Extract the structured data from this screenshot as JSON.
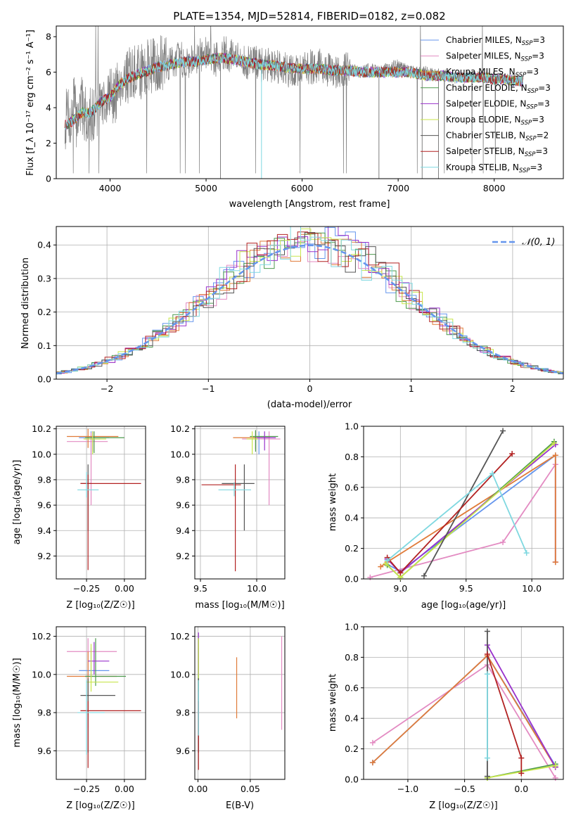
{
  "figure": {
    "title": "PLATE=1354, MJD=52814, FIBERID=0182, z=0.082"
  },
  "chart_data": [
    {
      "id": "spectrum",
      "type": "line",
      "xlabel": "wavelength [Angstrom, rest frame]",
      "ylabel": "Flux [f_λ 10⁻¹⁷ erg cm⁻² s⁻¹ A⁻¹]",
      "xlim": [
        3440,
        8720
      ],
      "ylim": [
        0,
        8.6
      ],
      "xticks": [
        4000,
        5000,
        6000,
        7000,
        8000
      ],
      "yticks": [
        0,
        2,
        4,
        6,
        8
      ],
      "grid": false,
      "legend_position": "top-right",
      "data_line": {
        "color": "#808080",
        "x": [
          3530,
          3560,
          3590,
          3620,
          3650,
          3700,
          3750,
          3800,
          3850,
          3900,
          3950,
          4000,
          4050,
          4100,
          4200,
          4300,
          4400,
          4500,
          4600,
          4700,
          4800,
          4900,
          5000,
          5100,
          5200,
          5300,
          5400,
          5500,
          5600,
          5700,
          5800,
          5900,
          6000,
          6100,
          6200,
          6300,
          6400,
          6500,
          6600,
          6700,
          6800,
          6900,
          7000,
          7100,
          7200,
          7300,
          7400,
          7500,
          7600,
          7700,
          7800,
          7900,
          8000,
          8100,
          8200,
          8300
        ],
        "y": [
          2.8,
          4.3,
          2.6,
          4.8,
          3.2,
          4.2,
          3.5,
          3.7,
          3.6,
          4.3,
          4.4,
          4.8,
          4.5,
          5.6,
          5.8,
          6.0,
          6.3,
          6.5,
          6.4,
          6.8,
          6.6,
          6.9,
          7.0,
          6.7,
          7.1,
          6.8,
          6.5,
          6.6,
          6.4,
          6.4,
          6.3,
          6.0,
          6.2,
          6.3,
          6.4,
          6.0,
          6.1,
          6.2,
          6.0,
          6.2,
          6.0,
          6.3,
          6.4,
          6.1,
          6.0,
          6.0,
          5.8,
          5.8,
          5.7,
          5.7,
          5.8,
          5.7,
          5.7,
          5.6,
          5.6,
          5.5
        ]
      },
      "model_x": [
        3530,
        3600,
        3700,
        3800,
        3900,
        4000,
        4100,
        4200,
        4300,
        4400,
        4500,
        4600,
        4700,
        4800,
        4900,
        5000,
        5100,
        5200,
        5300,
        5400,
        5500,
        5600,
        5700,
        5800,
        5900,
        6000,
        6100,
        6200,
        6300,
        6400,
        6500,
        6600,
        6700,
        6800,
        6900,
        7000,
        7100,
        7200,
        7300,
        7400,
        7500,
        7600,
        7700,
        7800,
        7900,
        8000,
        8100,
        8200,
        8300
      ],
      "model_y": [
        3.0,
        3.2,
        3.7,
        3.7,
        4.3,
        4.6,
        5.3,
        5.7,
        5.9,
        6.1,
        6.3,
        6.4,
        6.5,
        6.6,
        6.6,
        6.7,
        6.8,
        6.8,
        6.7,
        6.6,
        6.5,
        6.4,
        6.4,
        6.3,
        6.2,
        6.2,
        6.2,
        6.2,
        6.1,
        6.1,
        6.1,
        6.0,
        6.0,
        6.0,
        6.0,
        6.0,
        6.0,
        5.9,
        5.8,
        5.8,
        5.8,
        5.7,
        5.7,
        5.7,
        5.7,
        5.6,
        5.6,
        5.5,
        5.5
      ],
      "series": [
        {
          "name": "Chabrier MILES, N_SSP=3",
          "color": "#6495ed"
        },
        {
          "name": "Salpeter MILES, N_SSP=3",
          "color": "#e38bc2"
        },
        {
          "name": "Kroupa MILES, N_SSP=3",
          "color": "#e07b39"
        },
        {
          "name": "Chabrier ELODIE, N_SSP=3",
          "color": "#4d9a4d"
        },
        {
          "name": "Salpeter ELODIE, N_SSP=3",
          "color": "#9932cc"
        },
        {
          "name": "Kroupa ELODIE, N_SSP=3",
          "color": "#c8e64b"
        },
        {
          "name": "Chabrier STELIB, N_SSP=2",
          "color": "#555555"
        },
        {
          "name": "Salpeter STELIB, N_SSP=3",
          "color": "#b22222"
        },
        {
          "name": "Kroupa STELIB, N_SSP=3",
          "color": "#7fd8e0"
        }
      ]
    },
    {
      "id": "residuals",
      "type": "histogram",
      "xlabel": "(data-model)/error",
      "ylabel": "Normed distribution",
      "xlim": [
        -2.5,
        2.5
      ],
      "ylim": [
        0,
        0.455
      ],
      "xticks": [
        -2,
        -1,
        0,
        1,
        2
      ],
      "yticks": [
        0.0,
        0.1,
        0.2,
        0.3,
        0.4
      ],
      "grid": true,
      "legend_position": "top-right",
      "legend": "𝒩(0, 1)",
      "gaussian_color": "#6495ed",
      "bin_width": 0.1
    },
    {
      "id": "age-vs-Z",
      "type": "errorbar",
      "xlabel": "Z [log₁₀(Z/Z☉)]",
      "ylabel": "age  [log₁₀(age/yr)]",
      "xlim": [
        -0.45,
        0.14
      ],
      "ylim": [
        9.02,
        10.22
      ],
      "xticks": [
        -0.25,
        0.0
      ],
      "yticks": [
        9.2,
        9.4,
        9.6,
        9.8,
        10.0,
        10.2
      ],
      "grid": true,
      "points": [
        {
          "x": -0.22,
          "y": 10.13,
          "xerr": [
            0.08,
            0.12
          ],
          "yerr": [
            0.13,
            0.05
          ],
          "color": "#6495ed"
        },
        {
          "x": -0.22,
          "y": 10.1,
          "xerr": [
            0.16,
            0.11
          ],
          "yerr": [
            0.5,
            0.07
          ],
          "color": "#e38bc2"
        },
        {
          "x": -0.24,
          "y": 10.14,
          "xerr": [
            0.14,
            0.2
          ],
          "yerr": [
            0.09,
            0.06
          ],
          "color": "#e07b39"
        },
        {
          "x": -0.2,
          "y": 10.13,
          "xerr": [
            0.06,
            0.2
          ],
          "yerr": [
            0.12,
            0.05
          ],
          "color": "#4d9a4d"
        },
        {
          "x": -0.21,
          "y": 10.12,
          "xerr": [
            0.05,
            0.05
          ],
          "yerr": [
            0.1,
            0.06
          ],
          "color": "#9932cc"
        },
        {
          "x": -0.21,
          "y": 10.12,
          "xerr": [
            0.06,
            0.09
          ],
          "yerr": [
            0.12,
            0.06
          ],
          "color": "#c8e64b"
        },
        {
          "x": -0.24,
          "y": 9.77,
          "xerr": [
            0.05,
            0.02
          ],
          "yerr": [
            0.37,
            0.15
          ],
          "color": "#555555"
        },
        {
          "x": -0.24,
          "y": 9.77,
          "xerr": [
            0.05,
            0.35
          ],
          "yerr": [
            0.68,
            0.07
          ],
          "color": "#b22222"
        },
        {
          "x": -0.25,
          "y": 9.72,
          "xerr": [
            0.06,
            0.08
          ],
          "yerr": [
            0.06,
            0.14
          ],
          "color": "#7fd8e0"
        }
      ]
    },
    {
      "id": "age-vs-mass",
      "type": "errorbar",
      "xlabel": "mass [log₁₀(M/M☉)]",
      "ylabel": "",
      "xlim": [
        9.45,
        10.25
      ],
      "ylim": [
        9.02,
        10.22
      ],
      "xticks": [
        9.5,
        10.0
      ],
      "yticks": [
        9.2,
        9.4,
        9.6,
        9.8,
        10.0,
        10.2
      ],
      "grid": true,
      "points": [
        {
          "x": 10.02,
          "y": 10.13,
          "xerr": [
            0.06,
            0.08
          ],
          "yerr": [
            0.13,
            0.05
          ],
          "color": "#6495ed"
        },
        {
          "x": 10.11,
          "y": 10.12,
          "xerr": [
            0.24,
            0.1
          ],
          "yerr": [
            0.52,
            0.06
          ],
          "color": "#e38bc2"
        },
        {
          "x": 9.99,
          "y": 10.13,
          "xerr": [
            0.2,
            0.13
          ],
          "yerr": [
            0.09,
            0.05
          ],
          "color": "#e07b39"
        },
        {
          "x": 9.99,
          "y": 10.14,
          "xerr": [
            0.05,
            0.2
          ],
          "yerr": [
            0.12,
            0.05
          ],
          "color": "#4d9a4d"
        },
        {
          "x": 10.07,
          "y": 10.13,
          "xerr": [
            0.07,
            0.1
          ],
          "yerr": [
            0.1,
            0.05
          ],
          "color": "#9932cc"
        },
        {
          "x": 9.96,
          "y": 10.12,
          "xerr": [
            0.05,
            0.05
          ],
          "yerr": [
            0.12,
            0.06
          ],
          "color": "#c8e64b"
        },
        {
          "x": 9.89,
          "y": 9.77,
          "xerr": [
            0.2,
            0.09
          ],
          "yerr": [
            0.37,
            0.15
          ],
          "color": "#555555"
        },
        {
          "x": 9.81,
          "y": 9.76,
          "xerr": [
            0.3,
            0.05
          ],
          "yerr": [
            0.68,
            0.16
          ],
          "color": "#b22222"
        },
        {
          "x": 9.8,
          "y": 9.72,
          "xerr": [
            0.14,
            0.15
          ],
          "yerr": [
            0.05,
            0.06
          ],
          "color": "#7fd8e0"
        }
      ]
    },
    {
      "id": "mass-weight-vs-age",
      "type": "line",
      "xlabel": "age  [log₁₀(age/yr)]",
      "ylabel": "mass weight",
      "xlim": [
        8.72,
        10.24
      ],
      "ylim": [
        0,
        1.0
      ],
      "xticks": [
        9.0,
        9.5,
        10.0
      ],
      "yticks": [
        0.0,
        0.2,
        0.4,
        0.6,
        0.8,
        1.0
      ],
      "grid": true,
      "series": [
        {
          "color": "#6495ed",
          "x": [
            8.89,
            9.0,
            10.18,
            10.18
          ],
          "y": [
            0.1,
            0.05,
            0.81,
            0.11
          ]
        },
        {
          "color": "#e38bc2",
          "x": [
            8.77,
            9.78,
            10.18,
            10.18
          ],
          "y": [
            0.01,
            0.24,
            0.75,
            0.11
          ]
        },
        {
          "color": "#e07b39",
          "x": [
            8.85,
            8.9,
            10.18,
            10.18
          ],
          "y": [
            0.08,
            0.11,
            0.81,
            0.11
          ]
        },
        {
          "color": "#4d9a4d",
          "x": [
            8.9,
            9.0,
            10.17
          ],
          "y": [
            0.09,
            0.01,
            0.9
          ]
        },
        {
          "color": "#9932cc",
          "x": [
            8.9,
            9.0,
            10.18
          ],
          "y": [
            0.13,
            0.04,
            0.88
          ]
        },
        {
          "color": "#c8e64b",
          "x": [
            8.89,
            9.0,
            10.17
          ],
          "y": [
            0.1,
            0.01,
            0.89
          ]
        },
        {
          "color": "#555555",
          "x": [
            9.18,
            9.78
          ],
          "y": [
            0.02,
            0.97
          ]
        },
        {
          "color": "#b22222",
          "x": [
            8.9,
            9.0,
            9.85
          ],
          "y": [
            0.14,
            0.04,
            0.82
          ]
        },
        {
          "color": "#7fd8e0",
          "x": [
            8.9,
            9.7,
            9.96
          ],
          "y": [
            0.12,
            0.69,
            0.17
          ]
        }
      ]
    },
    {
      "id": "mass-vs-Z",
      "type": "errorbar",
      "xlabel": "Z [log₁₀(Z/Z☉)]",
      "ylabel": "mass [log₁₀(M/M☉)]",
      "xlim": [
        -0.45,
        0.14
      ],
      "ylim": [
        9.45,
        10.25
      ],
      "xticks": [
        -0.25,
        0.0
      ],
      "yticks": [
        9.6,
        9.8,
        10.0,
        10.2
      ],
      "grid": true,
      "points": [
        {
          "x": -0.22,
          "y": 10.02,
          "xerr": [
            0.08,
            0.12
          ],
          "yerr": [
            0.05,
            0.12
          ],
          "color": "#6495ed"
        },
        {
          "x": -0.24,
          "y": 10.12,
          "xerr": [
            0.14,
            0.19
          ],
          "yerr": [
            0.4,
            0.07
          ],
          "color": "#e38bc2"
        },
        {
          "x": -0.24,
          "y": 9.99,
          "xerr": [
            0.14,
            0.19
          ],
          "yerr": [
            0.2,
            0.13
          ],
          "color": "#e07b39"
        },
        {
          "x": -0.19,
          "y": 9.99,
          "xerr": [
            0.07,
            0.2
          ],
          "yerr": [
            0.05,
            0.2
          ],
          "color": "#4d9a4d"
        },
        {
          "x": -0.2,
          "y": 10.07,
          "xerr": [
            0.04,
            0.1
          ],
          "yerr": [
            0.07,
            0.1
          ],
          "color": "#9932cc"
        },
        {
          "x": -0.22,
          "y": 9.96,
          "xerr": [
            0.03,
            0.18
          ],
          "yerr": [
            0.05,
            0.2
          ],
          "color": "#c8e64b"
        },
        {
          "x": -0.24,
          "y": 9.89,
          "xerr": [
            0.05,
            0.18
          ],
          "yerr": [
            0.3,
            0.09
          ],
          "color": "#555555"
        },
        {
          "x": -0.24,
          "y": 9.81,
          "xerr": [
            0.05,
            0.35
          ],
          "yerr": [
            0.3,
            0.05
          ],
          "color": "#b22222"
        },
        {
          "x": -0.25,
          "y": 9.8,
          "xerr": [
            0.06,
            0.12
          ],
          "yerr": [
            0.22,
            0.17
          ],
          "color": "#7fd8e0"
        }
      ]
    },
    {
      "id": "mass-vs-ebv",
      "type": "errorbar",
      "xlabel": "E(B-V)",
      "ylabel": "",
      "xlim": [
        -0.003,
        0.083
      ],
      "ylim": [
        9.45,
        10.25
      ],
      "xticks": [
        0.0,
        0.05
      ],
      "yticks": [
        9.6,
        9.8,
        10.0,
        10.2
      ],
      "grid": true,
      "points": [
        {
          "x": 0.0005,
          "y": 10.02,
          "xerr": [
            0,
            0
          ],
          "yerr": [
            0.05,
            0.12
          ],
          "color": "#6495ed"
        },
        {
          "x": 0.08,
          "y": 9.96,
          "xerr": [
            0,
            0
          ],
          "yerr": [
            0.25,
            0.24
          ],
          "color": "#e38bc2"
        },
        {
          "x": 0.037,
          "y": 9.93,
          "xerr": [
            0,
            0
          ],
          "yerr": [
            0.16,
            0.16
          ],
          "color": "#e07b39"
        },
        {
          "x": 0.0005,
          "y": 9.99,
          "xerr": [
            0,
            0
          ],
          "yerr": [
            0.05,
            0.2
          ],
          "color": "#4d9a4d"
        },
        {
          "x": 0.0005,
          "y": 10.07,
          "xerr": [
            0,
            0
          ],
          "yerr": [
            0.07,
            0.15
          ],
          "color": "#9932cc"
        },
        {
          "x": 0.0005,
          "y": 9.96,
          "xerr": [
            0,
            0
          ],
          "yerr": [
            0.05,
            0.23
          ],
          "color": "#c8e64b"
        },
        {
          "x": 0.0005,
          "y": 9.89,
          "xerr": [
            0,
            0
          ],
          "yerr": [
            0.3,
            0.09
          ],
          "color": "#555555"
        },
        {
          "x": 0.0005,
          "y": 9.81,
          "xerr": [
            0,
            0
          ],
          "yerr": [
            0.31,
            0.05
          ],
          "color": "#b22222"
        },
        {
          "x": 0.0005,
          "y": 9.8,
          "xerr": [
            0,
            0
          ],
          "yerr": [
            0.12,
            0.17
          ],
          "color": "#7fd8e0"
        }
      ]
    },
    {
      "id": "mass-weight-vs-Z",
      "type": "line",
      "xlabel": "Z [log₁₀(Z/Z☉)]",
      "ylabel": "mass weight",
      "xlim": [
        -1.39,
        0.37
      ],
      "ylim": [
        0,
        1.0
      ],
      "xticks": [
        -1.0,
        -0.5,
        0.0
      ],
      "yticks": [
        0.0,
        0.2,
        0.4,
        0.6,
        0.8,
        1.0
      ],
      "grid": true,
      "series": [
        {
          "color": "#6495ed",
          "x": [
            -1.31,
            -0.3,
            0.3
          ],
          "y": [
            0.11,
            0.81,
            0.09
          ]
        },
        {
          "color": "#e38bc2",
          "x": [
            -1.31,
            -0.3,
            0.3
          ],
          "y": [
            0.24,
            0.75,
            0.01
          ]
        },
        {
          "color": "#e07b39",
          "x": [
            -1.31,
            -0.3,
            0.3
          ],
          "y": [
            0.11,
            0.81,
            0.08
          ]
        },
        {
          "color": "#4d9a4d",
          "x": [
            -0.3,
            0.3
          ],
          "y": [
            0.01,
            0.1
          ]
        },
        {
          "color": "#9932cc",
          "x": [
            -0.3,
            0.3
          ],
          "y": [
            0.88,
            0.08
          ]
        },
        {
          "color": "#c8e64b",
          "x": [
            -0.3,
            0.3
          ],
          "y": [
            0.01,
            0.09
          ]
        },
        {
          "color": "#555555",
          "x": [
            -0.3,
            -0.3
          ],
          "y": [
            0.02,
            0.97
          ]
        },
        {
          "color": "#b22222",
          "x": [
            -0.3,
            0.0,
            0.0
          ],
          "y": [
            0.82,
            0.14,
            0.04
          ]
        },
        {
          "color": "#7fd8e0",
          "x": [
            -0.3,
            -0.3
          ],
          "y": [
            0.69,
            0.14
          ]
        }
      ]
    }
  ]
}
